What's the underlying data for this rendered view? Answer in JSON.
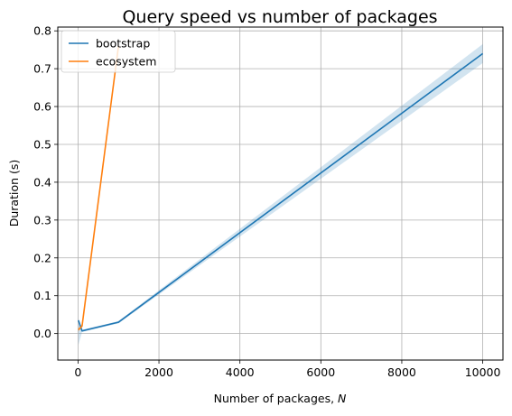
{
  "chart_data": {
    "type": "line",
    "title": "Query speed vs number of packages",
    "xlabel": "Number of packages, ",
    "xlabel_var": "N",
    "ylabel": "Duration (s)",
    "xlim": [
      -500,
      10500
    ],
    "ylim": [
      -0.07,
      0.81
    ],
    "x_ticks": [
      0,
      2000,
      4000,
      6000,
      8000,
      10000
    ],
    "x_tick_labels": [
      "0",
      "2000",
      "4000",
      "6000",
      "8000",
      "10000"
    ],
    "y_ticks": [
      0.0,
      0.1,
      0.2,
      0.3,
      0.4,
      0.5,
      0.6,
      0.7,
      0.8
    ],
    "y_tick_labels": [
      "0.0",
      "0.1",
      "0.2",
      "0.3",
      "0.4",
      "0.5",
      "0.6",
      "0.7",
      "0.8"
    ],
    "grid": true,
    "legend_position": "top-left",
    "series": [
      {
        "name": "bootstrap",
        "color": "#1f77b4",
        "x": [
          10,
          100,
          1000,
          10000
        ],
        "y": [
          0.035,
          0.007,
          0.03,
          0.74
        ],
        "band_lower": [
          -0.03,
          0.004,
          0.027,
          0.715
        ],
        "band_upper": [
          0.04,
          0.01,
          0.033,
          0.765
        ],
        "band_color": "#1f77b4"
      },
      {
        "name": "ecosystem",
        "color": "#ff7f0e",
        "x": [
          10,
          100,
          1000
        ],
        "y": [
          0.01,
          0.02,
          0.76
        ],
        "band_lower": [
          0.005,
          0.015,
          0.75
        ],
        "band_upper": [
          0.015,
          0.025,
          0.77
        ],
        "band_color": "#ff7f0e"
      }
    ]
  }
}
